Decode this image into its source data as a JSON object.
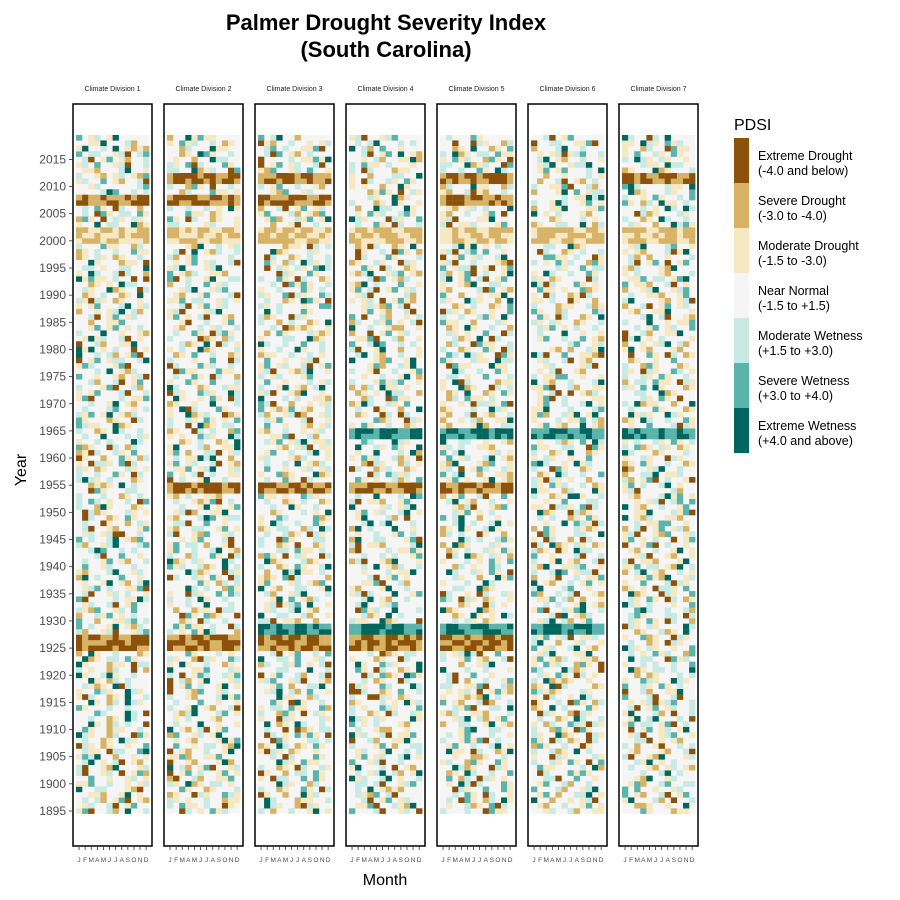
{
  "chart_data": {
    "type": "heatmap",
    "title": "Palmer Drought Severity Index",
    "subtitle": "(South Carolina)",
    "xlabel": "Month",
    "ylabel": "Year",
    "year_range": [
      1895,
      2019
    ],
    "year_ticks": [
      1895,
      1900,
      1905,
      1910,
      1915,
      1920,
      1925,
      1930,
      1935,
      1940,
      1945,
      1950,
      1955,
      1960,
      1965,
      1970,
      1975,
      1980,
      1985,
      1990,
      1995,
      2000,
      2005,
      2010,
      2015
    ],
    "year_tick_labels": [
      "1895",
      "1900",
      "1905",
      "1910",
      "1915",
      "1920",
      "1925",
      "1930",
      "1935",
      "1940",
      "1945",
      "1950",
      "1955",
      "1960",
      "1965",
      "1970",
      "1975",
      "1980",
      "1985",
      "1990",
      "1995",
      "2000",
      "2005",
      "2010",
      "2015"
    ],
    "months": [
      "J",
      "F",
      "M",
      "A",
      "M",
      "J",
      "J",
      "A",
      "S",
      "O",
      "N",
      "D"
    ],
    "panels": [
      "Climate Division 1",
      "Climate Division 2",
      "Climate Division 3",
      "Climate Division 4",
      "Climate Division 5",
      "Climate Division 6",
      "Climate Division 7"
    ],
    "legend": {
      "title": "PDSI",
      "position": "right",
      "categories": [
        {
          "label": "Extreme Drought",
          "range": "(-4.0 and below)",
          "color": "#8c510a"
        },
        {
          "label": "Severe Drought",
          "range": "(-3.0 to -4.0)",
          "color": "#d8b365"
        },
        {
          "label": "Moderate Drought",
          "range": "(-1.5 to -3.0)",
          "color": "#f6e8c3"
        },
        {
          "label": "Near Normal",
          "range": "(-1.5 to +1.5)",
          "color": "#f5f5f5"
        },
        {
          "label": "Moderate Wetness",
          "range": "(+1.5 to +3.0)",
          "color": "#c7eae5"
        },
        {
          "label": "Severe Wetness",
          "range": "(+3.0 to +4.0)",
          "color": "#5ab4ac"
        },
        {
          "label": "Extreme Wetness",
          "range": "(+4.0 and above)",
          "color": "#01665e"
        }
      ]
    },
    "notable_periods": [
      {
        "years": [
          1925,
          1927
        ],
        "category": "Extreme Drought",
        "divisions": [
          1,
          2,
          3,
          4,
          5
        ]
      },
      {
        "years": [
          1928,
          1929
        ],
        "category": "Extreme Wetness",
        "divisions": [
          3,
          4,
          5,
          6
        ]
      },
      {
        "years": [
          1954,
          1955
        ],
        "category": "Extreme Drought",
        "divisions": [
          2,
          3,
          4,
          5
        ]
      },
      {
        "years": [
          1964,
          1965
        ],
        "category": "Extreme Wetness",
        "divisions": [
          4,
          5,
          6,
          7
        ]
      },
      {
        "years": [
          2000,
          2002
        ],
        "category": "Severe Drought",
        "divisions": [
          1,
          2,
          3,
          4,
          5,
          6,
          7
        ]
      },
      {
        "years": [
          2007,
          2008
        ],
        "category": "Extreme Drought",
        "divisions": [
          1,
          2,
          3,
          5
        ]
      },
      {
        "years": [
          2011,
          2012
        ],
        "category": "Extreme Drought",
        "divisions": [
          2,
          3,
          5,
          7
        ]
      }
    ]
  }
}
